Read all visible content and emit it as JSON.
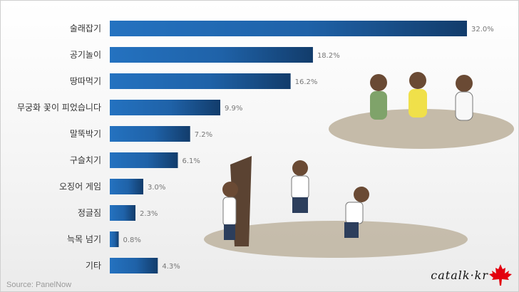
{
  "chart_data": {
    "type": "bar",
    "orientation": "horizontal",
    "categories": [
      "술래잡기",
      "공기놀이",
      "땅따먹기",
      "무궁화 꽃이 피었습니다",
      "말뚝박기",
      "구슬치기",
      "오징어 게임",
      "정글짐",
      "늑목 넘기",
      "기타"
    ],
    "values": [
      32.0,
      18.2,
      16.2,
      9.9,
      7.2,
      6.1,
      3.0,
      2.3,
      0.8,
      4.3
    ],
    "value_labels": [
      "32.0%",
      "18.2%",
      "16.2%",
      "9.9%",
      "7.2%",
      "6.1%",
      "3.0%",
      "2.3%",
      "0.8%",
      "4.3%"
    ],
    "unit": "%",
    "xlim": [
      0,
      32
    ],
    "grid": false,
    "colors": {
      "bar_start": "#2472c0",
      "bar_end": "#123c6b",
      "label": "#333333",
      "value": "#777777"
    }
  },
  "source": "Source: PanelNow",
  "logo": {
    "text": "catalk·kr",
    "icon": "maple-leaf-icon",
    "color": "#e3000f"
  }
}
